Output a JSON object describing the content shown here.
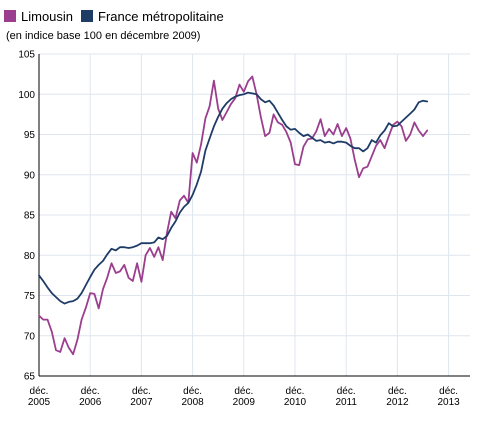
{
  "legend": {
    "items": [
      {
        "label": "Limousin",
        "color": "#9b3e8d"
      },
      {
        "label": "France métropolitaine",
        "color": "#1f3c66"
      }
    ]
  },
  "subtitle": "(en indice base 100 en décembre 2009)",
  "chart_data": {
    "type": "line",
    "title": "",
    "subtitle": "(en indice base 100 en décembre 2009)",
    "xlabel": "",
    "ylabel": "",
    "ylim": [
      65,
      105
    ],
    "yticks": [
      65,
      70,
      75,
      80,
      85,
      90,
      95,
      100,
      105
    ],
    "xlim": [
      2005.917,
      2013.5
    ],
    "xticks": [
      {
        "line1": "déc.",
        "line2": "2005",
        "x": 2005.917
      },
      {
        "line1": "déc.",
        "line2": "2006",
        "x": 2006.917
      },
      {
        "line1": "déc.",
        "line2": "2007",
        "x": 2007.917
      },
      {
        "line1": "déc.",
        "line2": "2008",
        "x": 2008.917
      },
      {
        "line1": "déc.",
        "line2": "2009",
        "x": 2009.917
      },
      {
        "line1": "déc.",
        "line2": "2010",
        "x": 2010.917
      },
      {
        "line1": "déc.",
        "line2": "2011",
        "x": 2011.917
      },
      {
        "line1": "déc.",
        "line2": "2012",
        "x": 2012.917
      },
      {
        "line1": "déc.",
        "line2": "2013",
        "x": 2013.917
      }
    ],
    "grid": true,
    "legend_position": "top-left",
    "series": [
      {
        "name": "Limousin",
        "color": "#9b3e8d",
        "x": [
          2005.917,
          2006.0,
          2006.083,
          2006.167,
          2006.25,
          2006.333,
          2006.417,
          2006.5,
          2006.583,
          2006.667,
          2006.75,
          2006.833,
          2006.917,
          2007.0,
          2007.083,
          2007.167,
          2007.25,
          2007.333,
          2007.417,
          2007.5,
          2007.583,
          2007.667,
          2007.75,
          2007.833,
          2007.917,
          2008.0,
          2008.083,
          2008.167,
          2008.25,
          2008.333,
          2008.417,
          2008.5,
          2008.583,
          2008.667,
          2008.75,
          2008.833,
          2008.917,
          2009.0,
          2009.083,
          2009.167,
          2009.25,
          2009.333,
          2009.417,
          2009.5,
          2009.583,
          2009.667,
          2009.75,
          2009.833,
          2009.917,
          2010.0,
          2010.083,
          2010.167,
          2010.25,
          2010.333,
          2010.417,
          2010.5,
          2010.583,
          2010.667,
          2010.75,
          2010.833,
          2010.917,
          2011.0,
          2011.083,
          2011.167,
          2011.25,
          2011.333,
          2011.417,
          2011.5,
          2011.583,
          2011.667,
          2011.75,
          2011.833,
          2011.917,
          2012.0,
          2012.083,
          2012.167,
          2012.25,
          2012.333,
          2012.417,
          2012.5,
          2012.583,
          2012.667,
          2012.75,
          2012.833,
          2012.917,
          2013.0,
          2013.083,
          2013.167,
          2013.25,
          2013.333,
          2013.417,
          2013.5
        ],
        "values": [
          72.5,
          72.0,
          72.0,
          70.5,
          68.2,
          68.0,
          69.7,
          68.5,
          67.7,
          69.5,
          72.0,
          73.5,
          75.3,
          75.2,
          73.4,
          75.8,
          77.2,
          79.0,
          77.8,
          78.0,
          78.8,
          77.2,
          76.8,
          79.0,
          76.7,
          80.0,
          80.9,
          79.8,
          81.0,
          79.4,
          82.8,
          85.4,
          84.6,
          86.8,
          87.4,
          86.5,
          92.7,
          91.5,
          93.8,
          97.0,
          98.5,
          101.7,
          98.2,
          96.8,
          97.8,
          98.8,
          99.5,
          101.2,
          100.3,
          101.6,
          102.2,
          100.0,
          97.2,
          94.8,
          95.2,
          97.5,
          96.5,
          96.2,
          95.3,
          94.0,
          91.3,
          91.2,
          93.5,
          94.4,
          94.5,
          95.4,
          96.9,
          94.8,
          95.7,
          95.0,
          96.3,
          94.8,
          95.8,
          94.5,
          91.9,
          89.7,
          90.8,
          91.0,
          92.3,
          93.6,
          94.3,
          93.3,
          94.8,
          96.2,
          96.6,
          96.0,
          94.2,
          95.0,
          96.5,
          95.5,
          94.8,
          95.5
        ]
      },
      {
        "name": "France métropolitaine",
        "color": "#1f3c66",
        "x": [
          2005.917,
          2006.0,
          2006.083,
          2006.167,
          2006.25,
          2006.333,
          2006.417,
          2006.5,
          2006.583,
          2006.667,
          2006.75,
          2006.833,
          2006.917,
          2007.0,
          2007.083,
          2007.167,
          2007.25,
          2007.333,
          2007.417,
          2007.5,
          2007.583,
          2007.667,
          2007.75,
          2007.833,
          2007.917,
          2008.0,
          2008.083,
          2008.167,
          2008.25,
          2008.333,
          2008.417,
          2008.5,
          2008.583,
          2008.667,
          2008.75,
          2008.833,
          2008.917,
          2009.0,
          2009.083,
          2009.167,
          2009.25,
          2009.333,
          2009.417,
          2009.5,
          2009.583,
          2009.667,
          2009.75,
          2009.833,
          2009.917,
          2010.0,
          2010.083,
          2010.167,
          2010.25,
          2010.333,
          2010.417,
          2010.5,
          2010.583,
          2010.667,
          2010.75,
          2010.833,
          2010.917,
          2011.0,
          2011.083,
          2011.167,
          2011.25,
          2011.333,
          2011.417,
          2011.5,
          2011.583,
          2011.667,
          2011.75,
          2011.833,
          2011.917,
          2012.0,
          2012.083,
          2012.167,
          2012.25,
          2012.333,
          2012.417,
          2012.5,
          2012.583,
          2012.667,
          2012.75,
          2012.833,
          2012.917,
          2013.0,
          2013.083,
          2013.167,
          2013.25,
          2013.333,
          2013.417,
          2013.5
        ],
        "values": [
          77.5,
          76.8,
          76.0,
          75.3,
          74.8,
          74.3,
          74.0,
          74.2,
          74.3,
          74.6,
          75.3,
          76.3,
          77.3,
          78.2,
          78.8,
          79.3,
          80.1,
          80.8,
          80.6,
          81.0,
          81.0,
          80.9,
          81.0,
          81.2,
          81.5,
          81.5,
          81.5,
          81.6,
          82.2,
          82.0,
          82.4,
          83.4,
          84.2,
          85.3,
          86.0,
          86.5,
          87.5,
          88.8,
          90.4,
          93.0,
          94.5,
          96.0,
          97.2,
          98.2,
          98.9,
          99.4,
          99.7,
          99.9,
          100.0,
          100.2,
          100.1,
          100.0,
          99.4,
          99.0,
          99.2,
          98.6,
          97.7,
          96.8,
          96.0,
          95.6,
          95.7,
          95.2,
          94.8,
          95.0,
          94.6,
          94.2,
          94.3,
          94.0,
          94.1,
          93.9,
          94.1,
          94.1,
          94.0,
          93.6,
          93.3,
          93.3,
          92.9,
          93.3,
          94.3,
          94.0,
          94.9,
          95.5,
          96.4,
          96.0,
          96.1,
          96.6,
          97.1,
          97.6,
          98.1,
          99.0,
          99.2,
          99.1
        ]
      }
    ]
  }
}
